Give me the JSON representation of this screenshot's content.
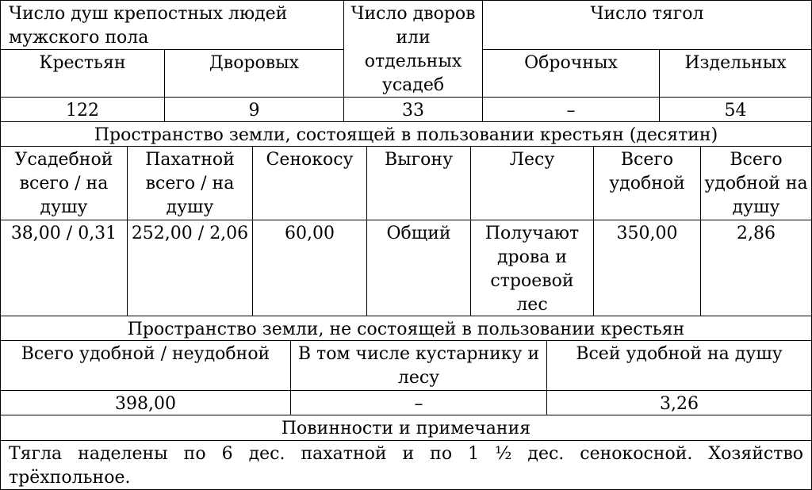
{
  "header": {
    "souls": "Число душ крепостных людей мужского пола",
    "households": "Число дворов или отдельных усадеб",
    "tyagla": "Число тягол",
    "peasants": "Крестьян",
    "servants": "Дворовых",
    "obrok": "Оброчных",
    "barshchina": "Издельных"
  },
  "values1": {
    "peasants": "122",
    "servants": "9",
    "households": "33",
    "obrok": "–",
    "barshchina": "54"
  },
  "section_used": "Пространство земли, состоящей в пользовании крестьян (десятин)",
  "used_headers": [
    "Усадебной всего / на душу",
    "Пахатной всего / на душу",
    "Сенокосу",
    "Выгону",
    "Лесу",
    "Всего удобной",
    "Всего удобной на душу"
  ],
  "used_values": [
    "38,00 / 0,31",
    "252,00 / 2,06",
    "60,00",
    "Общий",
    "Получают дрова и строевой лес",
    "350,00",
    "2,86"
  ],
  "section_unused": "Пространство земли, не состоящей в пользовании крестьян",
  "unused_headers": [
    "Всего удобной / неудобной",
    "В том числе кустарнику и лесу",
    "Всей удобной на душу"
  ],
  "unused_values": [
    "398,00",
    "–",
    "3,26"
  ],
  "section_duties": "Повинности и примечания",
  "duties_text": "Тягла наделены по 6 дес. пахатной и по 1 ½ дес. сенокосной. Хозяйство трёхпольное."
}
